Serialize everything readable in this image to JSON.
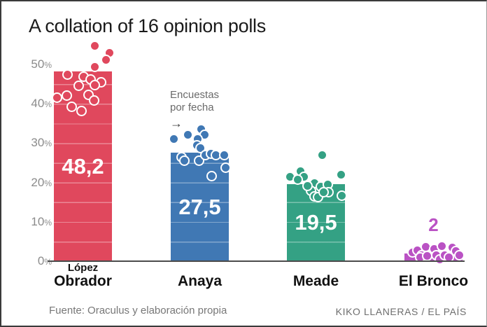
{
  "title": "A collation of 16 opinion polls",
  "annotation": {
    "line1": "Encuestas",
    "line2": "por fecha",
    "arrow": "→"
  },
  "y_axis": {
    "ticks": [
      "0%",
      "10%",
      "20%",
      "30%",
      "40%",
      "50%"
    ]
  },
  "footer": {
    "source": "Fuente: Oraculus y elaboración propia",
    "credit": "KIKO LLANERAS / EL PAÍS"
  },
  "chart_data": {
    "type": "bar",
    "title": "A collation of 16 opinion polls",
    "ylabel": "%",
    "ylim": [
      0,
      57
    ],
    "grid_step_pct": 5,
    "categories": [
      "López Obrador",
      "Anaya",
      "Meade",
      "El Bronco"
    ],
    "values": [
      48.2,
      27.5,
      19.5,
      2
    ],
    "bars": [
      {
        "name": "lopez-obrador",
        "label_lines": [
          "López",
          "Obrador"
        ],
        "value": 48.2,
        "value_label": "48,2",
        "color": "#e0485d",
        "polls_by_date_frac_pct": [
          [
            0.7,
            54.8
          ],
          [
            0.96,
            53.0
          ],
          [
            0.9,
            51.1
          ],
          [
            0.71,
            49.3
          ],
          [
            0.24,
            47.5
          ],
          [
            0.51,
            46.8
          ],
          [
            0.63,
            46.1
          ],
          [
            0.81,
            45.4
          ],
          [
            0.43,
            44.5
          ],
          [
            0.7,
            44.7
          ],
          [
            0.05,
            41.6
          ],
          [
            0.22,
            42.0
          ],
          [
            0.6,
            42.3
          ],
          [
            0.69,
            40.9
          ],
          [
            0.31,
            39.3
          ],
          [
            0.47,
            38.1
          ]
        ]
      },
      {
        "name": "anaya",
        "label_lines": [
          "Anaya"
        ],
        "value": 27.5,
        "value_label": "27,5",
        "color": "#4078b4",
        "polls_by_date_frac_pct": [
          [
            0.05,
            31.0
          ],
          [
            0.3,
            32.2
          ],
          [
            0.53,
            33.5
          ],
          [
            0.59,
            32.2
          ],
          [
            0.46,
            31.1
          ],
          [
            0.45,
            29.4
          ],
          [
            0.51,
            28.8
          ],
          [
            0.19,
            26.5
          ],
          [
            0.24,
            25.6
          ],
          [
            0.49,
            25.6
          ],
          [
            0.6,
            26.9
          ],
          [
            0.69,
            27.4
          ],
          [
            0.78,
            26.9
          ],
          [
            0.92,
            27.0
          ],
          [
            0.94,
            23.8
          ],
          [
            0.7,
            21.7
          ]
        ]
      },
      {
        "name": "meade",
        "label_lines": [
          "Meade"
        ],
        "value": 19.5,
        "value_label": "19,5",
        "color": "#34a184",
        "polls_by_date_frac_pct": [
          [
            0.61,
            26.9
          ],
          [
            0.06,
            21.5
          ],
          [
            0.23,
            22.8
          ],
          [
            0.3,
            21.5
          ],
          [
            0.19,
            20.8
          ],
          [
            0.93,
            21.9
          ],
          [
            0.48,
            19.8
          ],
          [
            0.59,
            18.9
          ],
          [
            0.71,
            19.4
          ],
          [
            0.72,
            17.6
          ],
          [
            0.42,
            17.8
          ],
          [
            0.47,
            16.5
          ],
          [
            0.54,
            16.2
          ],
          [
            0.95,
            16.7
          ],
          [
            0.35,
            19.2
          ],
          [
            0.63,
            17.6
          ]
        ]
      },
      {
        "name": "el-bronco",
        "label_lines": [
          "El Bronco"
        ],
        "value": 2,
        "value_label": "2",
        "color": "#ba52c4",
        "polls_by_date_frac_pct": [
          [
            0.14,
            2.3
          ],
          [
            0.22,
            2.8
          ],
          [
            0.29,
            1.6
          ],
          [
            0.37,
            3.7
          ],
          [
            0.51,
            3.2
          ],
          [
            0.47,
            0.9
          ],
          [
            0.55,
            1.6
          ],
          [
            0.61,
            0.5
          ],
          [
            0.65,
            3.9
          ],
          [
            0.69,
            1.6
          ],
          [
            0.77,
            0.9
          ],
          [
            0.83,
            3.4
          ],
          [
            0.89,
            2.5
          ],
          [
            0.95,
            1.6
          ],
          [
            0.27,
            0.9
          ],
          [
            0.39,
            1.4
          ]
        ]
      }
    ]
  }
}
